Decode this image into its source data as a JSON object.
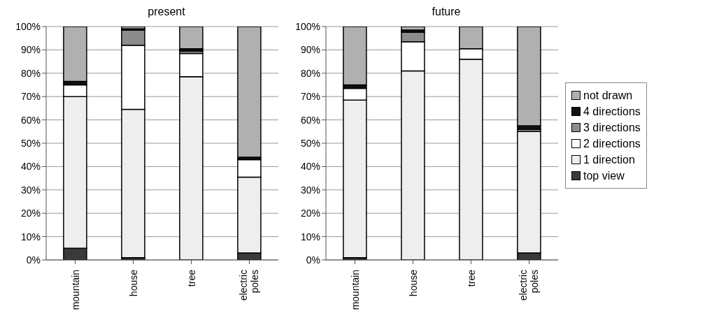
{
  "chart_data": [
    {
      "type": "bar",
      "title": "present",
      "stacked": true,
      "categories": [
        "mountain",
        "house",
        "tree",
        "electric poles"
      ],
      "ylim": [
        0,
        100
      ],
      "yticks": [
        {
          "value": 0,
          "label": "0%"
        },
        {
          "value": 10,
          "label": "10%"
        },
        {
          "value": 20,
          "label": "20%"
        },
        {
          "value": 30,
          "label": "30%"
        },
        {
          "value": 40,
          "label": "40%"
        },
        {
          "value": 50,
          "label": "50%"
        },
        {
          "value": 60,
          "label": "60%"
        },
        {
          "value": 70,
          "label": "70%"
        },
        {
          "value": 80,
          "label": "80%"
        },
        {
          "value": 90,
          "label": "90%"
        },
        {
          "value": 100,
          "label": "100%"
        }
      ],
      "grid": "y",
      "series": [
        {
          "color": "#3a3a3a",
          "values": [
            5,
            1,
            0,
            3
          ]
        },
        {
          "color": "#eeeeee",
          "values": [
            65,
            63.5,
            78.5,
            32.5
          ]
        },
        {
          "color": "#ffffff",
          "values": [
            5,
            27.5,
            10,
            7.5
          ]
        },
        {
          "color": "#8c8c8c",
          "values": [
            0,
            6.5,
            1,
            0
          ]
        },
        {
          "color": "#111111",
          "values": [
            1.5,
            0.5,
            1,
            1
          ]
        },
        {
          "color": "#b0b0b0",
          "values": [
            23.5,
            1,
            9.5,
            56
          ]
        }
      ]
    },
    {
      "type": "bar",
      "title": "future",
      "stacked": true,
      "categories": [
        "mountain",
        "house",
        "tree",
        "electric poles"
      ],
      "ylim": [
        0,
        100
      ],
      "yticks": [
        {
          "value": 0,
          "label": "0%"
        },
        {
          "value": 10,
          "label": "10%"
        },
        {
          "value": 20,
          "label": "20%"
        },
        {
          "value": 30,
          "label": "30%"
        },
        {
          "value": 40,
          "label": "40%"
        },
        {
          "value": 50,
          "label": "50%"
        },
        {
          "value": 60,
          "label": "60%"
        },
        {
          "value": 70,
          "label": "70%"
        },
        {
          "value": 80,
          "label": "80%"
        },
        {
          "value": 90,
          "label": "90%"
        },
        {
          "value": 100,
          "label": "100%"
        }
      ],
      "grid": "y",
      "legend": "right",
      "series": [
        {
          "name": "top view",
          "color": "#3a3a3a",
          "values": [
            1,
            0,
            0,
            3
          ]
        },
        {
          "name": "1 direction",
          "color": "#eeeeee",
          "values": [
            67.5,
            81,
            86,
            52
          ]
        },
        {
          "name": "2 directions",
          "color": "#ffffff",
          "values": [
            5,
            12.5,
            4.5,
            0
          ]
        },
        {
          "name": "3 directions",
          "color": "#8c8c8c",
          "values": [
            0,
            4,
            0,
            1
          ]
        },
        {
          "name": "4 directions",
          "color": "#111111",
          "values": [
            1.5,
            1,
            0,
            1.5
          ]
        },
        {
          "name": "not drawn",
          "color": "#b0b0b0",
          "values": [
            25,
            1.5,
            9.5,
            42.5
          ]
        }
      ]
    }
  ]
}
